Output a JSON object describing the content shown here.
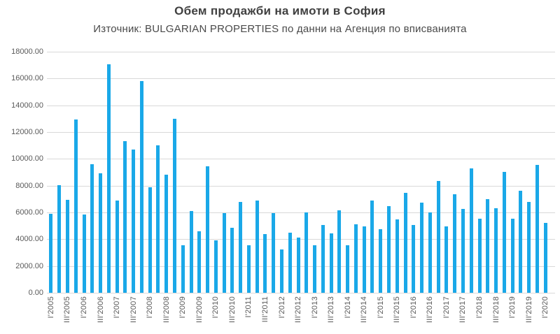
{
  "title": "Обем продажби на имоти в София",
  "subtitle": "Източник: BULGARIAN PROPERTIES по данни на Агенция по вписванията",
  "colors": {
    "bar": "#1aa8e8",
    "grid": "#d9d9d9",
    "title_text": "#404040",
    "axis_text": "#595959",
    "background": "#ffffff"
  },
  "chart_data": {
    "type": "bar",
    "title": "Обем продажби на имоти в София",
    "subtitle": "Източник: BULGARIAN PROPERTIES по данни на Агенция по вписванията",
    "xlabel": "",
    "ylabel": "",
    "ylim": [
      0,
      18000
    ],
    "y_tick_step": 2000,
    "y_ticks": [
      "0.00",
      "2000.00",
      "4000.00",
      "6000.00",
      "8000.00",
      "10000.00",
      "12000.00",
      "14000.00",
      "16000.00",
      "18000.00"
    ],
    "x_tick_every": 2,
    "grid": true,
    "legend": false,
    "categories": [
      "I'2005",
      "II'2005",
      "III'2005",
      "IV'2005",
      "I'2006",
      "II'2006",
      "III'2006",
      "IV'2006",
      "I'2007",
      "II'2007",
      "III'2007",
      "IV'2007",
      "I'2008",
      "II'2008",
      "III'2008",
      "IV'2008",
      "I'2009",
      "II'2009",
      "III'2009",
      "IV'2009",
      "I'2010",
      "II'2010",
      "III'2010",
      "IV'2010",
      "I'2011",
      "II'2011",
      "III'2011",
      "IV'2011",
      "I'2012",
      "II'2012",
      "III'2012",
      "IV'2012",
      "I'2013",
      "II'2013",
      "III'2013",
      "IV'2013",
      "I'2014",
      "II'2014",
      "III'2014",
      "IV'2014",
      "I'2015",
      "II'2015",
      "III'2015",
      "IV'2015",
      "I'2016",
      "II'2016",
      "III'2016",
      "IV'2016",
      "I'2017",
      "II'2017",
      "III'2017",
      "IV'2017",
      "I'2018",
      "II'2018",
      "III'2018",
      "IV'2018",
      "I'2019",
      "II'2019",
      "III'2019",
      "IV'2019",
      "I'2020"
    ],
    "values": [
      5900,
      8050,
      6950,
      12950,
      5850,
      9600,
      8900,
      17050,
      6900,
      11300,
      10700,
      15800,
      7900,
      11000,
      8800,
      13000,
      3550,
      6100,
      4600,
      9450,
      3900,
      5950,
      4850,
      6800,
      3550,
      6900,
      4400,
      5950,
      3250,
      4500,
      4100,
      6000,
      3550,
      5050,
      4450,
      6150,
      3550,
      5100,
      4950,
      6900,
      4750,
      6450,
      5500,
      7450,
      5050,
      6750,
      6000,
      8350,
      4950,
      7350,
      6250,
      9300,
      5550,
      7000,
      6300,
      9050,
      5550,
      7600,
      6800,
      9550,
      5200
    ],
    "x_tick_labels_shown": [
      "I'2005",
      "III'2005",
      "I'2006",
      "III'2006",
      "I'2007",
      "III'2007",
      "I'2008",
      "III'2008",
      "I'2009",
      "III'2009",
      "I'2010",
      "III'2010",
      "I'2011",
      "III'2011",
      "I'2012",
      "III'2012",
      "I'2013",
      "III'2013",
      "I'2014",
      "III'2014",
      "I'2015",
      "III'2015",
      "I'2016",
      "III'2016",
      "I'2017",
      "III'2017",
      "I'2018",
      "III'2018",
      "I'2019",
      "III'2019",
      "I'2020"
    ]
  }
}
